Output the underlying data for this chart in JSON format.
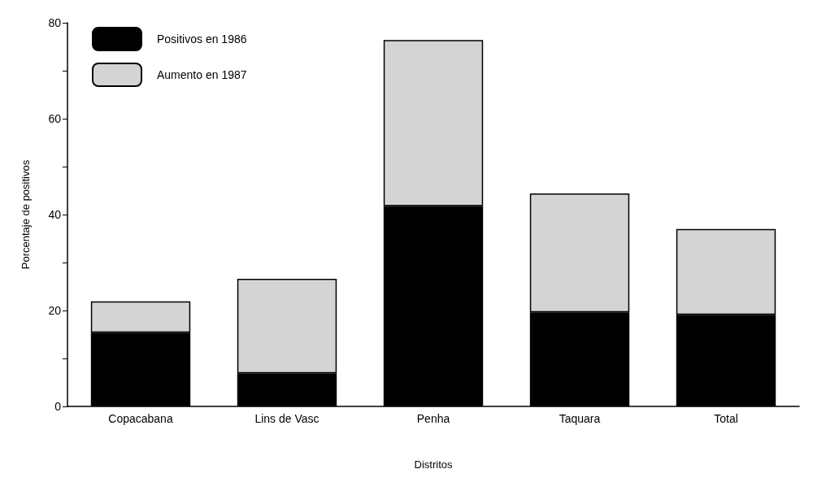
{
  "chart_data": {
    "type": "bar",
    "stacked": true,
    "xlabel": "Distritos",
    "ylabel": "Porcentaje de positivos",
    "categories": [
      "Copacabana",
      "Lins de Vasc",
      "Penha",
      "Taquara",
      "Total"
    ],
    "series": [
      {
        "name": "Positivos en 1986",
        "color": "#000000",
        "values": [
          15.4,
          6.9,
          41.8,
          19.6,
          19.1
        ]
      },
      {
        "name": "Aumento en 1987",
        "color": "#d4d4d4",
        "values": [
          6.5,
          19.7,
          34.6,
          24.8,
          17.9
        ]
      }
    ],
    "ylim": [
      0,
      80
    ],
    "yticks": [
      0,
      {
        "value": 10,
        "label": null
      },
      20,
      {
        "value": 30,
        "label": null
      },
      40,
      {
        "value": 50,
        "label": null
      },
      60,
      {
        "value": 70,
        "label": null
      },
      80
    ],
    "grid": false,
    "legend": "top left"
  }
}
